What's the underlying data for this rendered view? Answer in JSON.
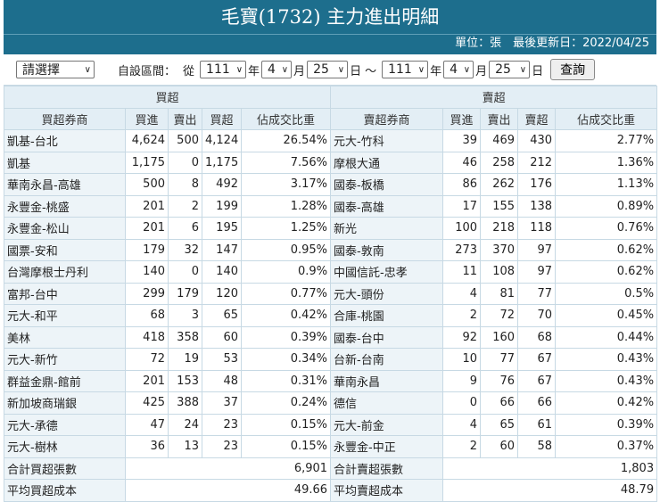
{
  "title": "毛寶(1732) 主力進出明細",
  "unit_line": "單位：張　最後更新日：2022/04/25",
  "filter": {
    "period_select": "請選擇",
    "custom_label": "自設區間：",
    "from_label": "從",
    "from": {
      "year": "111",
      "month": "4",
      "day": "25"
    },
    "to_label": "～",
    "to": {
      "year": "111",
      "month": "4",
      "day": "25"
    },
    "year_unit": "年",
    "month_unit": "月",
    "day_unit": "日",
    "query_button": "查詢"
  },
  "buy": {
    "group_label": "買超",
    "headers": [
      "買超券商",
      "買進",
      "賣出",
      "買超",
      "佔成交比重"
    ],
    "rows": [
      [
        "凱基-台北",
        "4,624",
        "500",
        "4,124",
        "26.54%"
      ],
      [
        "凱基",
        "1,175",
        "0",
        "1,175",
        "7.56%"
      ],
      [
        "華南永昌-高雄",
        "500",
        "8",
        "492",
        "3.17%"
      ],
      [
        "永豐金-桃盛",
        "201",
        "2",
        "199",
        "1.28%"
      ],
      [
        "永豐金-松山",
        "201",
        "6",
        "195",
        "1.25%"
      ],
      [
        "國票-安和",
        "179",
        "32",
        "147",
        "0.95%"
      ],
      [
        "台灣摩根士丹利",
        "140",
        "0",
        "140",
        "0.9%"
      ],
      [
        "富邦-台中",
        "299",
        "179",
        "120",
        "0.77%"
      ],
      [
        "元大-和平",
        "68",
        "3",
        "65",
        "0.42%"
      ],
      [
        "美林",
        "418",
        "358",
        "60",
        "0.39%"
      ],
      [
        "元大-新竹",
        "72",
        "19",
        "53",
        "0.34%"
      ],
      [
        "群益金鼎-館前",
        "201",
        "153",
        "48",
        "0.31%"
      ],
      [
        "新加坡商瑞銀",
        "425",
        "388",
        "37",
        "0.24%"
      ],
      [
        "元大-承德",
        "47",
        "24",
        "23",
        "0.15%"
      ],
      [
        "元大-樹林",
        "36",
        "13",
        "23",
        "0.15%"
      ]
    ],
    "total_label": "合計買超張數",
    "total_value": "6,901",
    "avg_label": "平均買超成本",
    "avg_value": "49.66"
  },
  "sell": {
    "group_label": "賣超",
    "headers": [
      "賣超券商",
      "買進",
      "賣出",
      "賣超",
      "佔成交比重"
    ],
    "rows": [
      [
        "元大-竹科",
        "39",
        "469",
        "430",
        "2.77%"
      ],
      [
        "摩根大通",
        "46",
        "258",
        "212",
        "1.36%"
      ],
      [
        "國泰-板橋",
        "86",
        "262",
        "176",
        "1.13%"
      ],
      [
        "國泰-高雄",
        "17",
        "155",
        "138",
        "0.89%"
      ],
      [
        "新光",
        "100",
        "218",
        "118",
        "0.76%"
      ],
      [
        "國泰-敦南",
        "273",
        "370",
        "97",
        "0.62%"
      ],
      [
        "中國信託-忠孝",
        "11",
        "108",
        "97",
        "0.62%"
      ],
      [
        "元大-頭份",
        "4",
        "81",
        "77",
        "0.5%"
      ],
      [
        "合庫-桃園",
        "2",
        "72",
        "70",
        "0.45%"
      ],
      [
        "國泰-台中",
        "92",
        "160",
        "68",
        "0.44%"
      ],
      [
        "台新-台南",
        "10",
        "77",
        "67",
        "0.43%"
      ],
      [
        "華南永昌",
        "9",
        "76",
        "67",
        "0.43%"
      ],
      [
        "德信",
        "0",
        "66",
        "66",
        "0.42%"
      ],
      [
        "元大-前金",
        "4",
        "65",
        "61",
        "0.39%"
      ],
      [
        "永豐金-中正",
        "2",
        "60",
        "58",
        "0.37%"
      ]
    ],
    "total_label": "合計賣超張數",
    "total_value": "1,803",
    "avg_label": "平均賣超成本",
    "avg_value": "48.79"
  }
}
